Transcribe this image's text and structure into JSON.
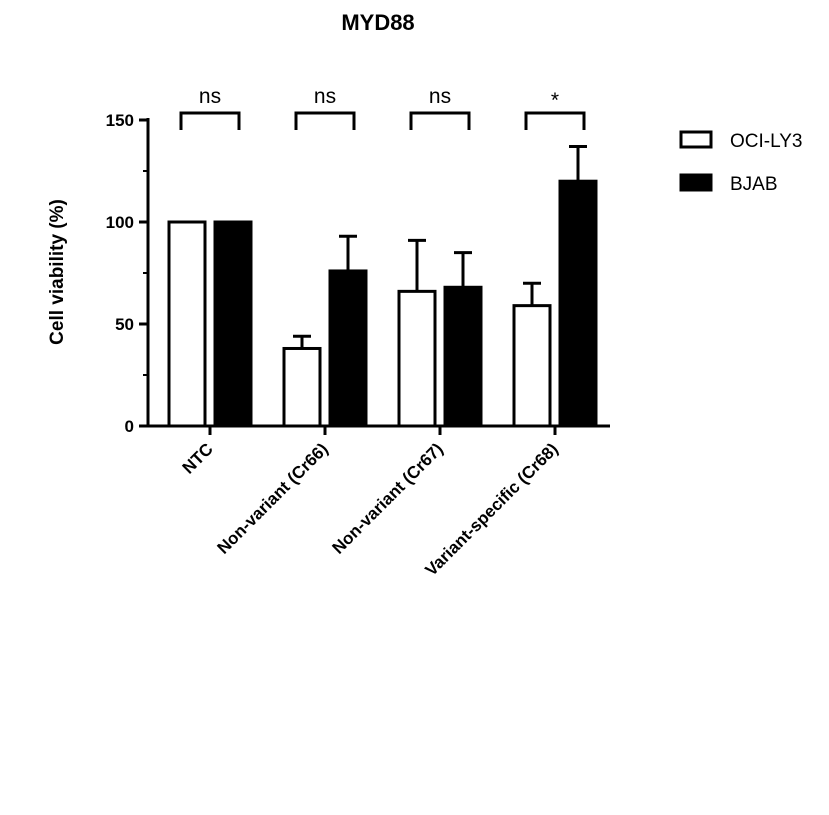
{
  "chart_data": {
    "type": "bar",
    "title": "MYD88",
    "ylabel": "Cell viability (%)",
    "xlabel": "",
    "ylim": [
      0,
      150
    ],
    "yticks": [
      0,
      50,
      100,
      150
    ],
    "categories": [
      "NTC",
      "Non-variant (Cr66)",
      "Non-variant (Cr67)",
      "Variant-specific (Cr68)"
    ],
    "series": [
      {
        "name": "OCI-LY3",
        "values": [
          100,
          38,
          66,
          59
        ],
        "errors": [
          0,
          6,
          25,
          11
        ],
        "fill": "#ffffff"
      },
      {
        "name": "BJAB",
        "values": [
          100,
          76,
          68,
          120
        ],
        "errors": [
          0,
          17,
          17,
          17
        ],
        "fill": "#000000"
      }
    ],
    "significance": [
      "ns",
      "ns",
      "ns",
      "*"
    ],
    "legend_position": "top-right",
    "grid": false
  }
}
